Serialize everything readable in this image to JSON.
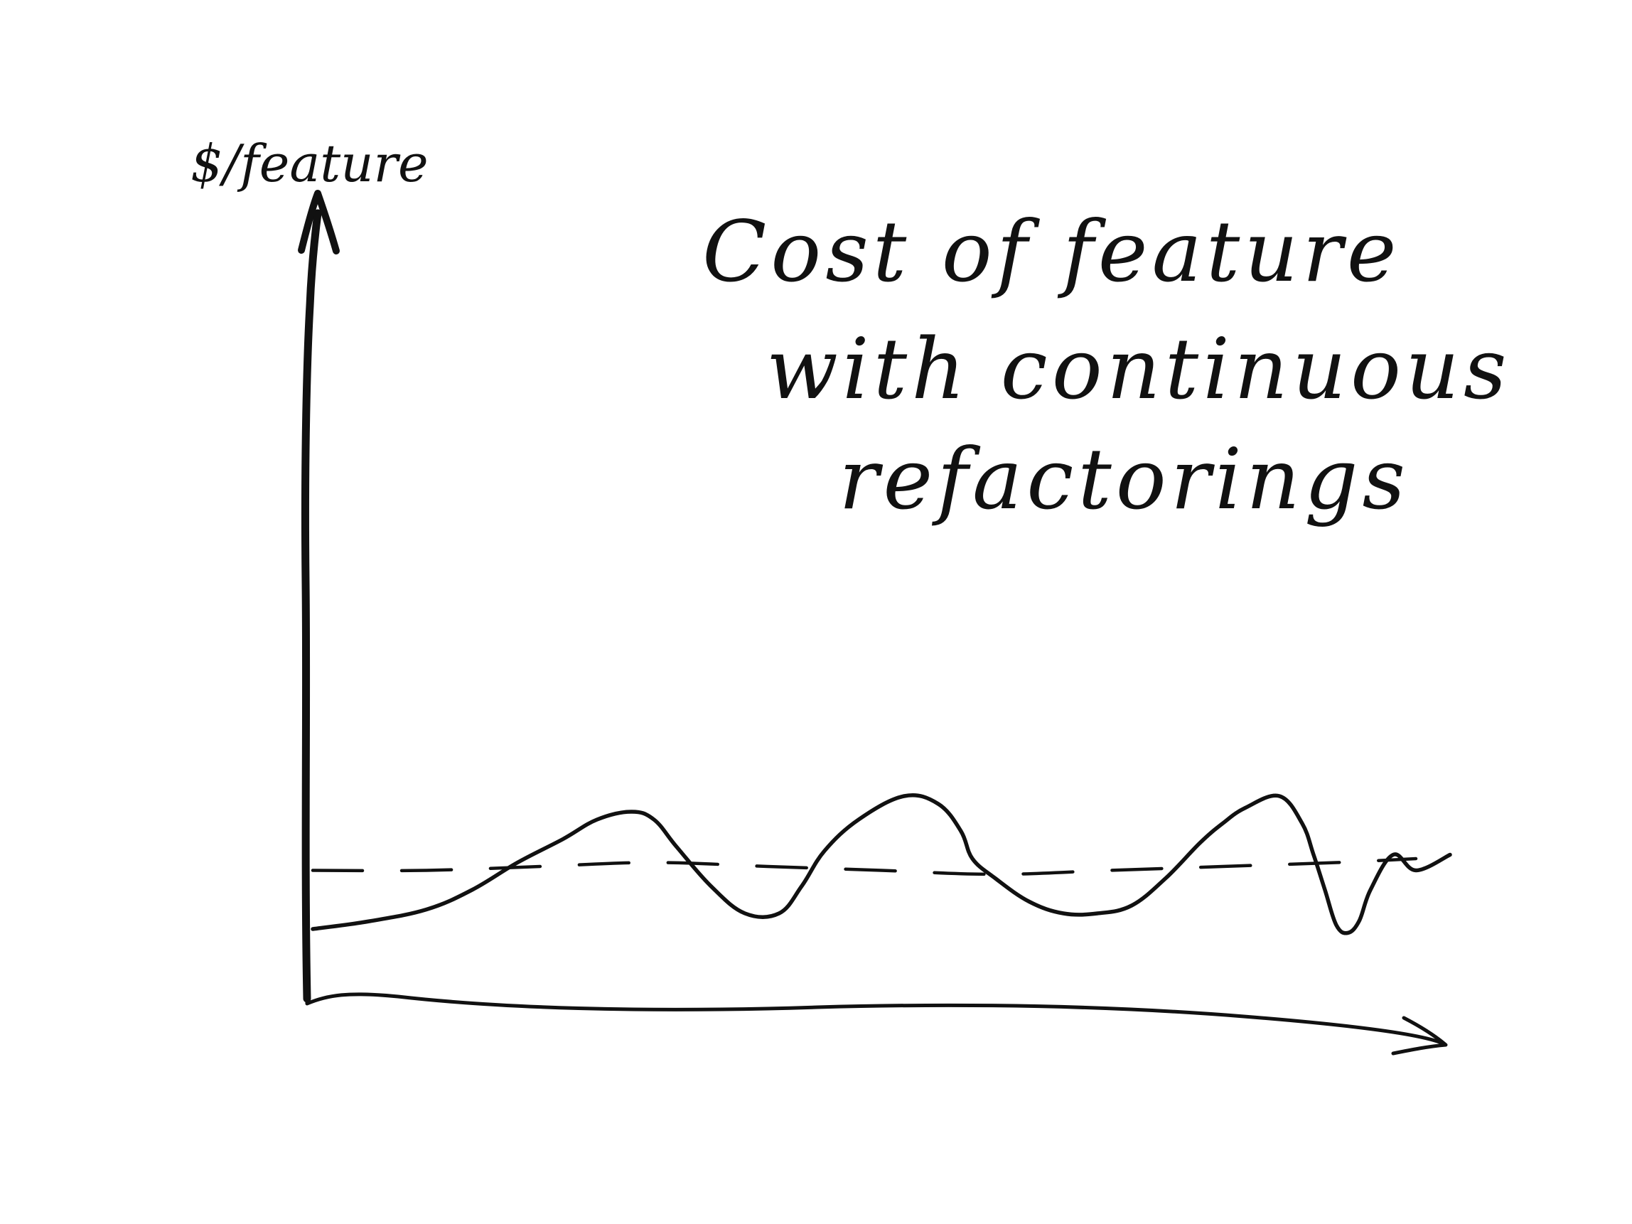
{
  "chart_data": {
    "type": "line",
    "ylabel": "$/feature",
    "xlabel": "",
    "title_lines": [
      "Cost of feature",
      "with continuous",
      "refactorings"
    ],
    "grid": false,
    "legend": "none",
    "xlim": [
      0,
      100
    ],
    "ylim": [
      0,
      100
    ],
    "series": [
      {
        "style": "solid",
        "x": [
          0,
          5,
          10,
          14,
          18,
          22,
          25,
          28,
          30,
          32,
          35,
          38,
          41,
          43,
          45,
          48,
          52,
          55,
          57,
          58,
          60,
          63,
          66,
          69,
          72,
          75,
          78,
          80,
          82,
          85,
          87,
          88,
          89,
          90,
          91,
          92,
          93,
          95,
          97,
          100
        ],
        "y": [
          16,
          18,
          21,
          26,
          33,
          39,
          44,
          46,
          44,
          37,
          27,
          20,
          20,
          27,
          36,
          44,
          50,
          48,
          41,
          34,
          29,
          23,
          20,
          20,
          22,
          29,
          38,
          43,
          47,
          50,
          43,
          35,
          26,
          17,
          15,
          18,
          26,
          35,
          31,
          35
        ]
      },
      {
        "style": "dashed",
        "x": [
          0,
          10,
          20,
          30,
          40,
          50,
          60,
          70,
          80,
          90,
          97
        ],
        "y": [
          31,
          31,
          32,
          33,
          32,
          31,
          30,
          31,
          32,
          33,
          34
        ]
      }
    ]
  }
}
